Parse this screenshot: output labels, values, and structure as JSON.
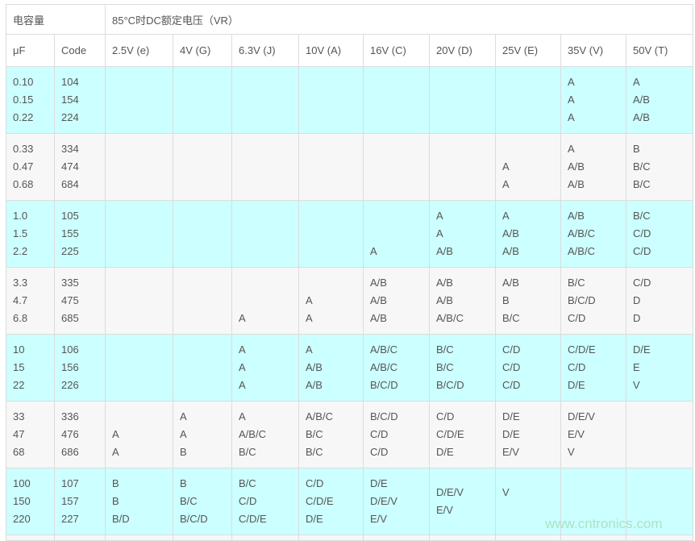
{
  "header": {
    "capacitance": "电容量",
    "rated_voltage": "85°C时DC额定电压（VR）"
  },
  "columns": [
    "μF",
    "Code",
    "2.5V (e)",
    "4V (G)",
    "6.3V (J)",
    "10V (A)",
    "16V (C)",
    "20V (D)",
    "25V (E)",
    "35V (V)",
    "50V (T)"
  ],
  "colors": {
    "row_cyan": "#ccffff",
    "row_gray": "#f7f7f7",
    "text": "#555555"
  },
  "groups": [
    {
      "shade": "cyan",
      "cells": [
        "0.10\n0.15\n0.22",
        "104\n154\n224",
        "",
        "",
        "",
        "",
        "",
        "",
        "",
        "A\nA\nA",
        "A\nA/B\nA/B"
      ]
    },
    {
      "shade": "gray",
      "cells": [
        "0.33\n0.47\n0.68",
        "334\n474\n684",
        "",
        "",
        "",
        "",
        "",
        "",
        "\nA\nA",
        "A\nA/B\nA/B",
        "B\nB/C\nB/C"
      ]
    },
    {
      "shade": "cyan",
      "cells": [
        "1.0\n1.5\n2.2",
        "105\n155\n225",
        "",
        "",
        "",
        "",
        "\n\nA",
        "A\nA\nA/B",
        "A\nA/B\nA/B",
        "A/B\nA/B/C\nA/B/C",
        "B/C\nC/D\nC/D"
      ]
    },
    {
      "shade": "gray",
      "cells": [
        "3.3\n4.7\n6.8",
        "335\n475\n685",
        "",
        "",
        "\n\nA",
        "\nA\nA",
        "A/B\nA/B\nA/B",
        "A/B\nA/B\nA/B/C",
        "A/B\nB\nB/C",
        "B/C\nB/C/D\nC/D",
        "C/D\nD\nD"
      ]
    },
    {
      "shade": "cyan",
      "cells": [
        "10\n15\n22",
        "106\n156\n226",
        "",
        "",
        "A\nA\nA",
        "A\nA/B\nA/B",
        "A/B/C\nA/B/C\nB/C/D",
        "B/C\nB/C\nB/C/D",
        "C/D\nC/D\nC/D",
        "C/D/E\nC/D\nD/E",
        "D/E\nE\nV"
      ]
    },
    {
      "shade": "gray",
      "cells": [
        "33\n47\n68",
        "336\n476\n686",
        "\nA\nA",
        "A\nA\nB",
        "A\nA/B/C\nB/C",
        "A/B/C\nB/C\nB/C",
        "B/C/D\nC/D\nC/D",
        "C/D\nC/D/E\nD/E",
        "D/E\nD/E\nE/V",
        "D/E/V\nE/V\nV",
        ""
      ]
    },
    {
      "shade": "cyan",
      "cells": [
        "100\n150\n220",
        "107\n157\n227",
        "B\nB\nB/D",
        "B\nB/C\nB/C/D",
        "B/C\nC/D\nC/D/E",
        "C/D\nC/D/E\nD/E",
        "D/E\nD/E/V\nE/V",
        "D/E/V\nE/V\n",
        "V\n\n",
        "",
        ""
      ]
    }
  ],
  "watermark": "www.cntronics.com"
}
